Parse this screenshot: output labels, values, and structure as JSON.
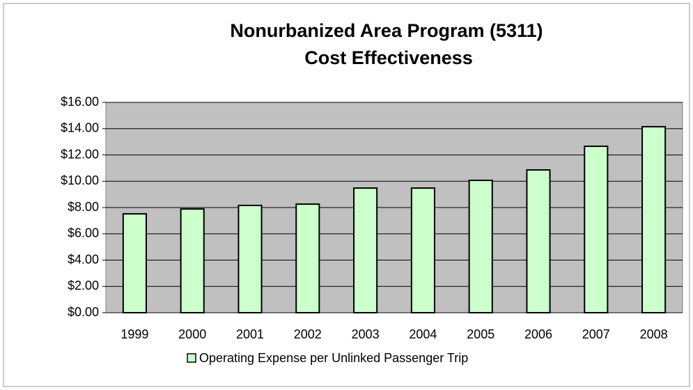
{
  "chart_data": {
    "type": "bar",
    "title": [
      "Nonurbanized Area Program (5311)",
      "Cost Effectiveness"
    ],
    "categories": [
      "1999",
      "2000",
      "2001",
      "2002",
      "2003",
      "2004",
      "2005",
      "2006",
      "2007",
      "2008"
    ],
    "series": [
      {
        "name": "Operating Expense per Unlinked Passenger Trip",
        "color": "#ccffcc",
        "values": [
          7.52,
          7.89,
          8.16,
          8.26,
          9.48,
          9.48,
          10.07,
          10.86,
          12.66,
          14.15
        ]
      }
    ],
    "ylim": [
      0,
      16
    ],
    "yticks": [
      {
        "value": 0,
        "label": "$0.00"
      },
      {
        "value": 2,
        "label": "$2.00"
      },
      {
        "value": 4,
        "label": "$4.00"
      },
      {
        "value": 6,
        "label": "$6.00"
      },
      {
        "value": 8,
        "label": "$8.00"
      },
      {
        "value": 10,
        "label": "$10.00"
      },
      {
        "value": 12,
        "label": "$12.00"
      },
      {
        "value": 14,
        "label": "$14.00"
      },
      {
        "value": 16,
        "label": "$16.00"
      }
    ],
    "grid": true,
    "legend": "bottom"
  }
}
